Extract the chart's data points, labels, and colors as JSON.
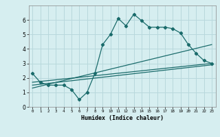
{
  "xlabel": "Humidex (Indice chaleur)",
  "background_color": "#d6eef0",
  "grid_color": "#b8d8dc",
  "line_color": "#1a6b6b",
  "xlim": [
    -0.5,
    23.5
  ],
  "ylim": [
    0,
    7
  ],
  "xticks": [
    0,
    1,
    2,
    3,
    4,
    5,
    6,
    7,
    8,
    9,
    10,
    11,
    12,
    13,
    14,
    15,
    16,
    17,
    18,
    19,
    20,
    21,
    22,
    23
  ],
  "yticks": [
    0,
    1,
    2,
    3,
    4,
    5,
    6
  ],
  "series": [
    {
      "x": [
        0,
        1,
        2,
        3,
        4,
        5,
        6,
        7,
        8,
        9,
        10,
        11,
        12,
        13,
        14,
        15,
        16,
        17,
        18,
        19,
        20,
        21,
        22,
        23
      ],
      "y": [
        2.3,
        1.7,
        1.5,
        1.5,
        1.5,
        1.2,
        0.5,
        1.0,
        2.3,
        4.3,
        5.0,
        6.1,
        5.6,
        6.4,
        5.95,
        5.5,
        5.5,
        5.5,
        5.4,
        5.1,
        4.3,
        3.7,
        3.2,
        3.0
      ],
      "marker": "D",
      "linestyle": "-"
    },
    {
      "x": [
        0,
        23
      ],
      "y": [
        1.7,
        3.0
      ],
      "marker": null,
      "linestyle": "-"
    },
    {
      "x": [
        0,
        23
      ],
      "y": [
        1.5,
        2.9
      ],
      "marker": null,
      "linestyle": "-"
    },
    {
      "x": [
        0,
        23
      ],
      "y": [
        1.3,
        4.3
      ],
      "marker": null,
      "linestyle": "-"
    }
  ]
}
